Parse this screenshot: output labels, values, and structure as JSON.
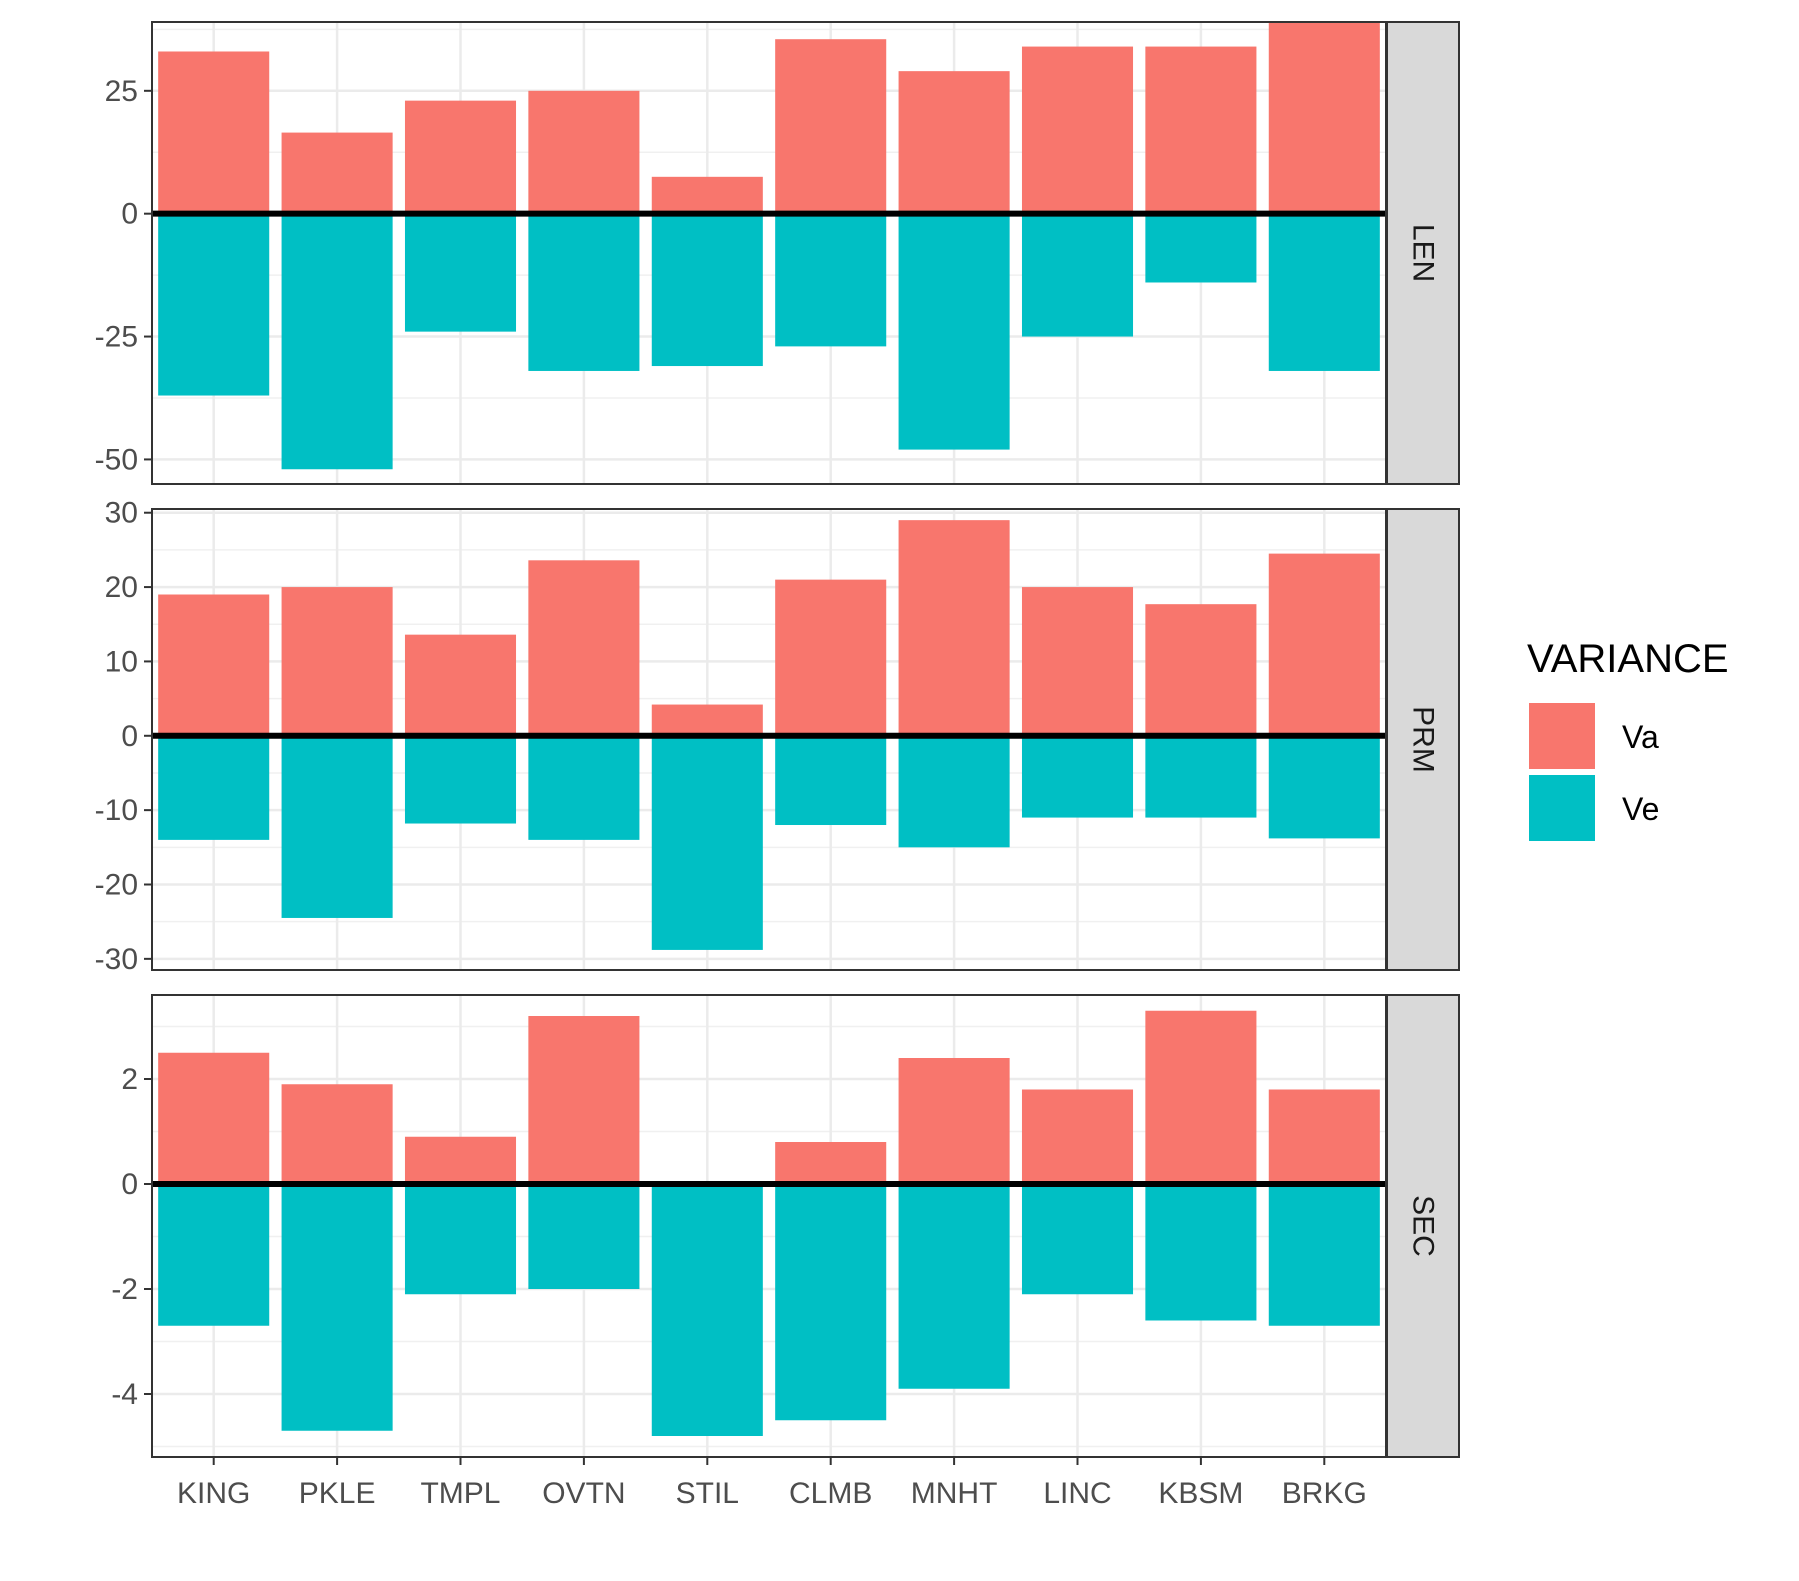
{
  "chart_data": {
    "type": "bar",
    "layout": "faceted-rows",
    "categories": [
      "KING",
      "PKLE",
      "TMPL",
      "OVTN",
      "STIL",
      "CLMB",
      "MNHT",
      "LINC",
      "KBSM",
      "BRKG"
    ],
    "legend": {
      "title": "VARIANCE",
      "placement": "right",
      "entries": [
        {
          "name": "Va",
          "color": "#F8766D"
        },
        {
          "name": "Ve",
          "color": "#00BFC4"
        }
      ]
    },
    "grid": true,
    "zero_line": true,
    "facets": [
      {
        "label": "LEN",
        "ylim": [
          -55,
          39
        ],
        "yticks": [
          25,
          0,
          -25,
          -50
        ],
        "series": [
          {
            "name": "Va",
            "values": [
              33,
              16.5,
              23,
              25,
              7.5,
              35.5,
              29,
              34,
              34,
              39
            ]
          },
          {
            "name": "Ve",
            "values": [
              -37,
              -52,
              -24,
              -32,
              -31,
              -27,
              -48,
              -25,
              -14,
              -32
            ]
          }
        ]
      },
      {
        "label": "PRM",
        "ylim": [
          -31.5,
          30.5
        ],
        "yticks": [
          30,
          20,
          10,
          0,
          -10,
          -20,
          -30
        ],
        "series": [
          {
            "name": "Va",
            "values": [
              19,
              20,
              13.6,
              23.6,
              4.2,
              21,
              29,
              20,
              17.7,
              24.5
            ]
          },
          {
            "name": "Ve",
            "values": [
              -14,
              -24.5,
              -11.8,
              -14,
              -28.8,
              -12,
              -15,
              -11,
              -11,
              -13.8
            ]
          }
        ]
      },
      {
        "label": "SEC",
        "ylim": [
          -5.2,
          3.6
        ],
        "yticks": [
          2,
          0,
          -2,
          -4
        ],
        "series": [
          {
            "name": "Va",
            "values": [
              2.5,
              1.9,
              0.9,
              3.2,
              0.05,
              0.8,
              2.4,
              1.8,
              3.3,
              1.8
            ]
          },
          {
            "name": "Ve",
            "values": [
              -2.7,
              -4.7,
              -2.1,
              -2.0,
              -4.8,
              -4.5,
              -3.9,
              -2.1,
              -2.6,
              -2.7
            ]
          }
        ]
      }
    ]
  }
}
